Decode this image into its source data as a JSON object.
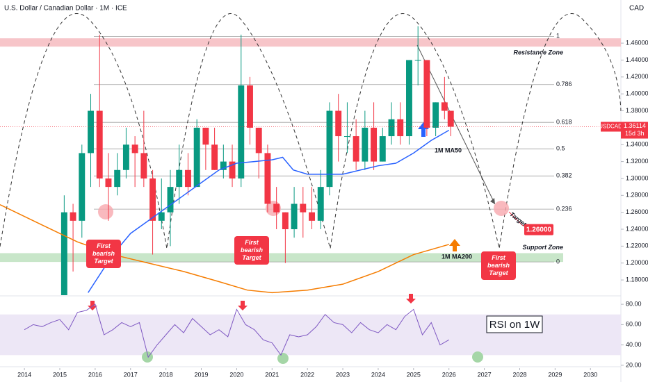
{
  "chart_data": [
    {
      "type": "candlestick",
      "title": "U.S. Dollar / Canadian Dollar · 1M · ICE",
      "currency": "CAD",
      "symbol": "USDCAD",
      "last_price": 1.36114,
      "countdown": "15d 3h",
      "xlim": [
        2013.31,
        2030.86
      ],
      "xticks": [
        2014,
        2015,
        2016,
        2017,
        2018,
        2019,
        2020,
        2021,
        2022,
        2023,
        2024,
        2025,
        2026,
        2027,
        2028,
        2029,
        2030
      ],
      "ylim": [
        1.162,
        1.511
      ],
      "yticks": [
        {
          "value": 1.18,
          "label": "1.18000"
        },
        {
          "value": 1.2,
          "label": "1.20000"
        },
        {
          "value": 1.22,
          "label": "1.22000"
        },
        {
          "value": 1.24,
          "label": "1.24000"
        },
        {
          "value": 1.26,
          "label": "1.26000"
        },
        {
          "value": 1.28,
          "label": "1.28000"
        },
        {
          "value": 1.3,
          "label": "1.30000"
        },
        {
          "value": 1.32,
          "label": "1.32000"
        },
        {
          "value": 1.34,
          "label": "1.34000"
        },
        {
          "value": 1.36,
          "label": "1.36000"
        },
        {
          "value": 1.38,
          "label": "1.38000"
        },
        {
          "value": 1.4,
          "label": "1.40000"
        },
        {
          "value": 1.42,
          "label": "1.42000"
        },
        {
          "value": 1.44,
          "label": "1.44000"
        },
        {
          "value": 1.46,
          "label": "1.46000"
        }
      ],
      "up_color": "#089981",
      "down_color": "#f23645",
      "x": [
        2015.125,
        2015.375,
        2015.625,
        2015.875,
        2016.125,
        2016.375,
        2016.625,
        2016.875,
        2017.125,
        2017.375,
        2017.625,
        2017.875,
        2018.125,
        2018.375,
        2018.625,
        2018.875,
        2019.125,
        2019.375,
        2019.625,
        2019.875,
        2020.125,
        2020.375,
        2020.625,
        2020.875,
        2021.125,
        2021.375,
        2021.625,
        2021.875,
        2022.125,
        2022.375,
        2022.625,
        2022.875,
        2023.125,
        2023.375,
        2023.625,
        2023.875,
        2024.125,
        2024.375,
        2024.625,
        2024.875,
        2025.125,
        2025.375,
        2025.625,
        2025.875,
        2026.05
      ],
      "open": [
        1.16,
        1.26,
        1.25,
        1.33,
        1.38,
        1.3,
        1.29,
        1.31,
        1.34,
        1.33,
        1.3,
        1.25,
        1.26,
        1.29,
        1.31,
        1.29,
        1.36,
        1.34,
        1.31,
        1.32,
        1.3,
        1.41,
        1.36,
        1.33,
        1.27,
        1.26,
        1.24,
        1.27,
        1.26,
        1.25,
        1.29,
        1.38,
        1.35,
        1.35,
        1.32,
        1.36,
        1.32,
        1.35,
        1.37,
        1.35,
        1.44,
        1.44,
        1.36,
        1.39,
        1.38
      ],
      "high": [
        1.28,
        1.27,
        1.34,
        1.4,
        1.47,
        1.33,
        1.33,
        1.36,
        1.35,
        1.38,
        1.31,
        1.3,
        1.31,
        1.34,
        1.33,
        1.37,
        1.36,
        1.36,
        1.34,
        1.34,
        1.47,
        1.42,
        1.36,
        1.34,
        1.29,
        1.26,
        1.29,
        1.29,
        1.29,
        1.31,
        1.39,
        1.4,
        1.39,
        1.37,
        1.38,
        1.39,
        1.36,
        1.39,
        1.39,
        1.44,
        1.48,
        1.44,
        1.39,
        1.42,
        1.38
      ],
      "low": [
        1.15,
        1.19,
        1.23,
        1.29,
        1.29,
        1.25,
        1.28,
        1.3,
        1.29,
        1.29,
        1.21,
        1.24,
        1.22,
        1.27,
        1.28,
        1.29,
        1.31,
        1.31,
        1.3,
        1.29,
        1.29,
        1.34,
        1.3,
        1.26,
        1.24,
        1.2,
        1.23,
        1.23,
        1.24,
        1.24,
        1.28,
        1.32,
        1.33,
        1.31,
        1.31,
        1.31,
        1.32,
        1.34,
        1.34,
        1.34,
        1.41,
        1.35,
        1.35,
        1.37,
        1.35
      ],
      "close": [
        1.26,
        1.25,
        1.33,
        1.38,
        1.3,
        1.29,
        1.31,
        1.34,
        1.33,
        1.3,
        1.25,
        1.26,
        1.29,
        1.31,
        1.29,
        1.36,
        1.34,
        1.31,
        1.32,
        1.3,
        1.41,
        1.36,
        1.33,
        1.27,
        1.26,
        1.24,
        1.27,
        1.26,
        1.25,
        1.29,
        1.38,
        1.35,
        1.35,
        1.32,
        1.36,
        1.32,
        1.35,
        1.37,
        1.35,
        1.44,
        1.44,
        1.36,
        1.39,
        1.38,
        1.36114
      ],
      "series": [
        {
          "name": "1M MA50",
          "color": "#2962ff",
          "x": [
            2015.8,
            2016.5,
            2017.0,
            2017.5,
            2018.0,
            2018.5,
            2019.0,
            2019.5,
            2020.0,
            2020.5,
            2021.0,
            2021.3,
            2021.6,
            2022.0,
            2023.0,
            2023.5,
            2024.0,
            2024.5,
            2025.0,
            2025.5,
            2026.0
          ],
          "values": [
            1.165,
            1.21,
            1.235,
            1.25,
            1.265,
            1.28,
            1.295,
            1.31,
            1.318,
            1.32,
            1.322,
            1.325,
            1.31,
            1.305,
            1.305,
            1.31,
            1.315,
            1.318,
            1.33,
            1.345,
            1.357
          ]
        },
        {
          "name": "1M MA200",
          "color": "#f57c00",
          "x": [
            2013.31,
            2014.5,
            2015.5,
            2016.5,
            2017.5,
            2018.5,
            2019.5,
            2020.3,
            2021.0,
            2022.0,
            2023.0,
            2024.0,
            2025.0,
            2026.0
          ],
          "values": [
            1.269,
            1.245,
            1.225,
            1.21,
            1.2,
            1.19,
            1.178,
            1.168,
            1.165,
            1.168,
            1.175,
            1.19,
            1.21,
            1.222
          ]
        }
      ],
      "zones": [
        {
          "label": "Resistance Zone",
          "range": [
            1.4559,
            1.4657
          ],
          "color": "#f7c5c9"
        },
        {
          "label": "Support Zone",
          "range": [
            1.2013,
            1.2117
          ],
          "color": "#c8e6c9"
        }
      ],
      "fib_levels": [
        {
          "ratio": 1,
          "price": 1.468
        },
        {
          "ratio": 0.786,
          "price": 1.411
        },
        {
          "ratio": 0.618,
          "price": 1.3663
        },
        {
          "ratio": 0.5,
          "price": 1.335
        },
        {
          "ratio": 0.382,
          "price": 1.303
        },
        {
          "ratio": 0.236,
          "price": 1.2637
        },
        {
          "ratio": 0,
          "price": 1.2013
        }
      ],
      "target": {
        "label": "Target",
        "value": 1.26,
        "value_label": "1.26000"
      },
      "annotations": [
        "First bearish Target",
        "First bearish Target",
        "First bearish Target"
      ]
    },
    {
      "type": "line",
      "title": "RSI on 1W",
      "color": "#7e57c2",
      "band": [
        30,
        70
      ],
      "ylim": [
        17.2,
        86.9
      ],
      "yticks": [
        {
          "value": 20,
          "label": "20.00"
        },
        {
          "value": 40,
          "label": "40.00"
        },
        {
          "value": 60,
          "label": "60.00"
        },
        {
          "value": 80,
          "label": "80.00"
        }
      ],
      "x": [
        2014.0,
        2014.25,
        2014.5,
        2014.75,
        2015.0,
        2015.25,
        2015.5,
        2015.75,
        2016.0,
        2016.25,
        2016.5,
        2016.75,
        2017.0,
        2017.25,
        2017.5,
        2017.75,
        2018.0,
        2018.25,
        2018.5,
        2018.75,
        2019.0,
        2019.25,
        2019.5,
        2019.75,
        2020.0,
        2020.25,
        2020.5,
        2020.75,
        2021.0,
        2021.25,
        2021.5,
        2021.75,
        2022.0,
        2022.25,
        2022.5,
        2022.75,
        2023.0,
        2023.25,
        2023.5,
        2023.75,
        2024.0,
        2024.25,
        2024.5,
        2024.75,
        2025.0,
        2025.25,
        2025.5,
        2025.75,
        2026.0
      ],
      "values": [
        55,
        60,
        58,
        62,
        65,
        55,
        72,
        74,
        80,
        50,
        55,
        62,
        58,
        62,
        28,
        40,
        50,
        60,
        52,
        66,
        58,
        50,
        55,
        48,
        75,
        60,
        55,
        45,
        42,
        30,
        50,
        48,
        50,
        58,
        70,
        62,
        60,
        52,
        62,
        55,
        52,
        60,
        55,
        68,
        75,
        50,
        62,
        40,
        45
      ]
    }
  ]
}
